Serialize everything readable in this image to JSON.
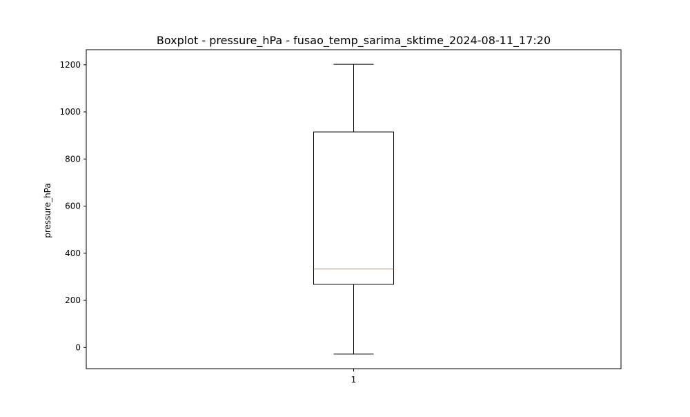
{
  "chart_data": {
    "type": "boxplot",
    "title": "Boxplot - pressure_hPa - fusao_temp_sarima_sktime_2024-08-11_17:20",
    "xlabel": "",
    "ylabel": "pressure_hPa",
    "categories": [
      "1"
    ],
    "boxes": [
      {
        "category": "1",
        "whisker_low": -28,
        "q1": 268,
        "median": 333,
        "q3": 915,
        "whisker_high": 1202
      }
    ],
    "ylim": [
      -90,
      1264
    ],
    "xlim": [
      0.5,
      1.5
    ],
    "yticks": [
      0,
      200,
      400,
      600,
      800,
      1000,
      1200
    ],
    "grid": false,
    "colors": {
      "box": "#000000",
      "median": "#ff7f0e",
      "whisker": "#000000",
      "axes": "#000000"
    }
  }
}
